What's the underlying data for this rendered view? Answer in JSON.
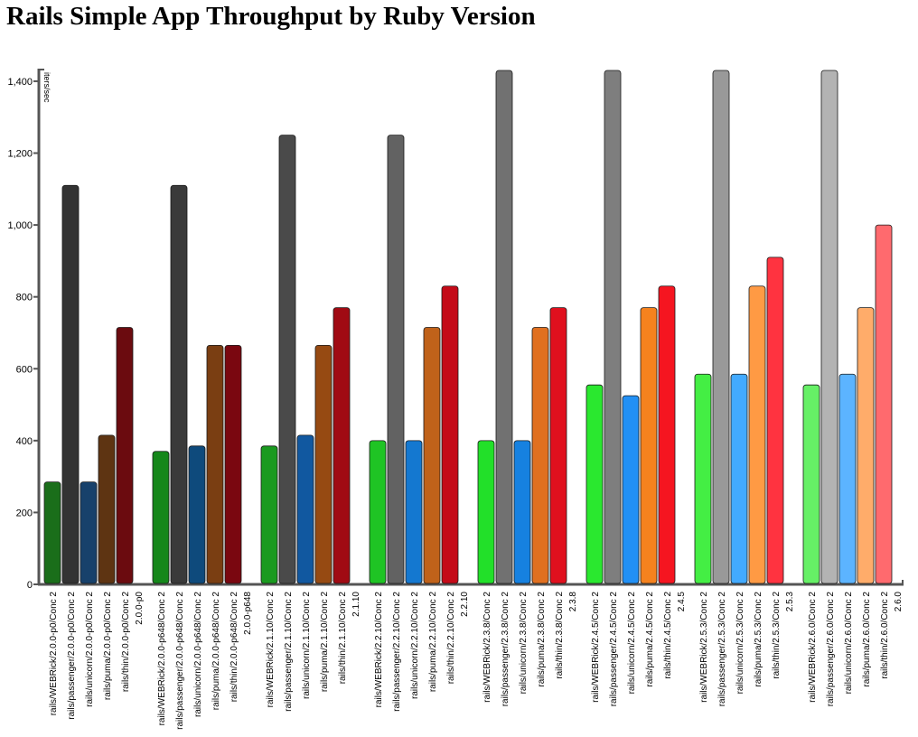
{
  "chart_data": {
    "type": "bar",
    "title": "Rails Simple App Throughput by Ruby Version",
    "ylabel": "iters/sec",
    "xlabel": "",
    "ylim": [
      0,
      1430
    ],
    "yticks": [
      0,
      200,
      400,
      600,
      800,
      1000,
      1200,
      1400
    ],
    "ytick_labels": [
      "0",
      "200",
      "400",
      "600",
      "800",
      "1,000",
      "1,200",
      "1,400"
    ],
    "grid": false,
    "groups": [
      {
        "label": "2.0.0-p0",
        "bars": [
          {
            "label": "rails/WEBRick/2.0.0-p0/Conc 2",
            "value": 285,
            "color": "#1a6e1a"
          },
          {
            "label": "rails/passenger/2.0.0-p0/Conc 2",
            "value": 1110,
            "color": "#333333"
          },
          {
            "label": "rails/unicorn/2.0.0-p0/Conc 2",
            "value": 285,
            "color": "#17416b"
          },
          {
            "label": "rails/puma/2.0.0-p0/Conc 2",
            "value": 415,
            "color": "#5e3412"
          },
          {
            "label": "rails/thin/2.0.0-p0/Conc 2",
            "value": 715,
            "color": "#6b0b0f"
          }
        ]
      },
      {
        "label": "2.0.0-p648",
        "bars": [
          {
            "label": "rails/WEBRick/2.0.0-p648/Conc 2",
            "value": 370,
            "color": "#15871a"
          },
          {
            "label": "rails/passenger/2.0.0-p648/Conc 2",
            "value": 1110,
            "color": "#3a3a3a"
          },
          {
            "label": "rails/unicorn/2.0.0-p648/Conc 2",
            "value": 385,
            "color": "#0e4a7c"
          },
          {
            "label": "rails/puma/2.0.0-p648/Conc 2",
            "value": 665,
            "color": "#7a3e12"
          },
          {
            "label": "rails/thin/2.0.0-p648/Conc 2",
            "value": 665,
            "color": "#7a0710"
          }
        ]
      },
      {
        "label": "2.1.10",
        "bars": [
          {
            "label": "rails/WEBRick/2.1.10/Conc 2",
            "value": 385,
            "color": "#1a9a1f"
          },
          {
            "label": "rails/passenger/2.1.10/Conc 2",
            "value": 1250,
            "color": "#4a4a4a"
          },
          {
            "label": "rails/unicorn/2.1.10/Conc 2",
            "value": 415,
            "color": "#1158a0"
          },
          {
            "label": "rails/puma/2.1.10/Conc 2",
            "value": 665,
            "color": "#964a12"
          },
          {
            "label": "rails/thin/2.1.10/Conc 2",
            "value": 770,
            "color": "#a00a13"
          }
        ]
      },
      {
        "label": "2.2.10",
        "bars": [
          {
            "label": "rails/WEBRick/2.2.10/Conc 2",
            "value": 400,
            "color": "#1fc424"
          },
          {
            "label": "rails/passenger/2.2.10/Conc 2",
            "value": 1250,
            "color": "#626262"
          },
          {
            "label": "rails/unicorn/2.2.10/Conc 2",
            "value": 400,
            "color": "#1478d0"
          },
          {
            "label": "rails/puma/2.2.10/Conc 2",
            "value": 715,
            "color": "#c0621a"
          },
          {
            "label": "rails/thin/2.2.10/Conc 2",
            "value": 830,
            "color": "#c40a18"
          }
        ]
      },
      {
        "label": "2.3.8",
        "bars": [
          {
            "label": "rails/WEBRick/2.3.8/Conc 2",
            "value": 400,
            "color": "#22e029"
          },
          {
            "label": "rails/passenger/2.3.8/Conc 2",
            "value": 1430,
            "color": "#717171"
          },
          {
            "label": "rails/unicorn/2.3.8/Conc 2",
            "value": 400,
            "color": "#1681e0"
          },
          {
            "label": "rails/puma/2.3.8/Conc 2",
            "value": 715,
            "color": "#e07020"
          },
          {
            "label": "rails/thin/2.3.8/Conc 2",
            "value": 770,
            "color": "#e0101e"
          }
        ]
      },
      {
        "label": "2.4.5",
        "bars": [
          {
            "label": "rails/WEBRick/2.4.5/Conc 2",
            "value": 555,
            "color": "#2ae82f"
          },
          {
            "label": "rails/passenger/2.4.5/Conc 2",
            "value": 1430,
            "color": "#7e7e7e"
          },
          {
            "label": "rails/unicorn/2.4.5/Conc 2",
            "value": 525,
            "color": "#2290f5"
          },
          {
            "label": "rails/puma/2.4.5/Conc 2",
            "value": 770,
            "color": "#f5821e"
          },
          {
            "label": "rails/thin/2.4.5/Conc 2",
            "value": 830,
            "color": "#f51520"
          }
        ]
      },
      {
        "label": "2.5.3",
        "bars": [
          {
            "label": "rails/WEBRick/2.5.3/Conc 2",
            "value": 585,
            "color": "#44ee44"
          },
          {
            "label": "rails/passenger/2.5.3/Conc 2",
            "value": 1430,
            "color": "#999999"
          },
          {
            "label": "rails/unicorn/2.5.3/Conc 2",
            "value": 585,
            "color": "#42aaff"
          },
          {
            "label": "rails/puma/2.5.3/Conc 2",
            "value": 830,
            "color": "#ff9a44"
          },
          {
            "label": "rails/thin/2.5.3/Conc 2",
            "value": 910,
            "color": "#ff3340"
          }
        ]
      },
      {
        "label": "2.6.0",
        "bars": [
          {
            "label": "rails/WEBRick/2.6.0/Conc 2",
            "value": 555,
            "color": "#66f066"
          },
          {
            "label": "rails/passenger/2.6.0/Conc 2",
            "value": 1430,
            "color": "#b3b3b3"
          },
          {
            "label": "rails/unicorn/2.6.0/Conc 2",
            "value": 585,
            "color": "#5cb4ff"
          },
          {
            "label": "rails/puma/2.6.0/Conc 2",
            "value": 770,
            "color": "#ffac6a"
          },
          {
            "label": "rails/thin/2.6.0/Conc 2",
            "value": 1000,
            "color": "#ff6a6e"
          }
        ]
      }
    ]
  }
}
